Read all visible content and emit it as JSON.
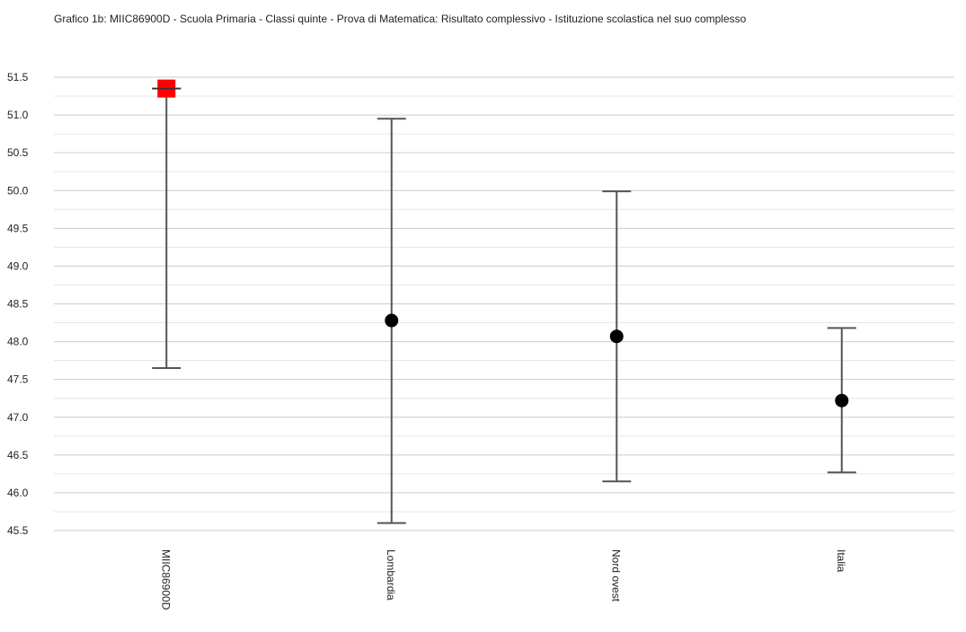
{
  "chart_data": {
    "type": "scatter",
    "title": "Grafico 1b: MIIC86900D - Scuola Primaria - Classi quinte - Prova di Matematica: Risultato complessivo - Istituzione scolastica nel suo complesso",
    "xlabel": "",
    "ylabel": "",
    "ylim": [
      45.5,
      51.5
    ],
    "yticks": [
      "45.5",
      "46.0",
      "46.5",
      "47.0",
      "47.5",
      "48.0",
      "48.5",
      "49.0",
      "49.5",
      "50.0",
      "50.5",
      "51.0",
      "51.5"
    ],
    "grid": true,
    "categories": [
      "MIIC86900D",
      "Lombardia",
      "Nord ovest",
      "Italia"
    ],
    "points": [
      {
        "category": "MIIC86900D",
        "value": 51.35,
        "low": 47.65,
        "high": 51.35,
        "marker": "square",
        "color": "#ff0000"
      },
      {
        "category": "Lombardia",
        "value": 48.28,
        "low": 45.6,
        "high": 50.95,
        "marker": "circle",
        "color": "#000000"
      },
      {
        "category": "Nord ovest",
        "value": 48.07,
        "low": 46.15,
        "high": 49.99,
        "marker": "circle",
        "color": "#000000"
      },
      {
        "category": "Italia",
        "value": 47.22,
        "low": 46.27,
        "high": 48.18,
        "marker": "circle",
        "color": "#000000"
      }
    ]
  },
  "colors": {
    "grid_major": "#cccccc",
    "grid_minor": "#e6e6e6",
    "whisker": "#555555",
    "highlight": "#ff0000"
  }
}
